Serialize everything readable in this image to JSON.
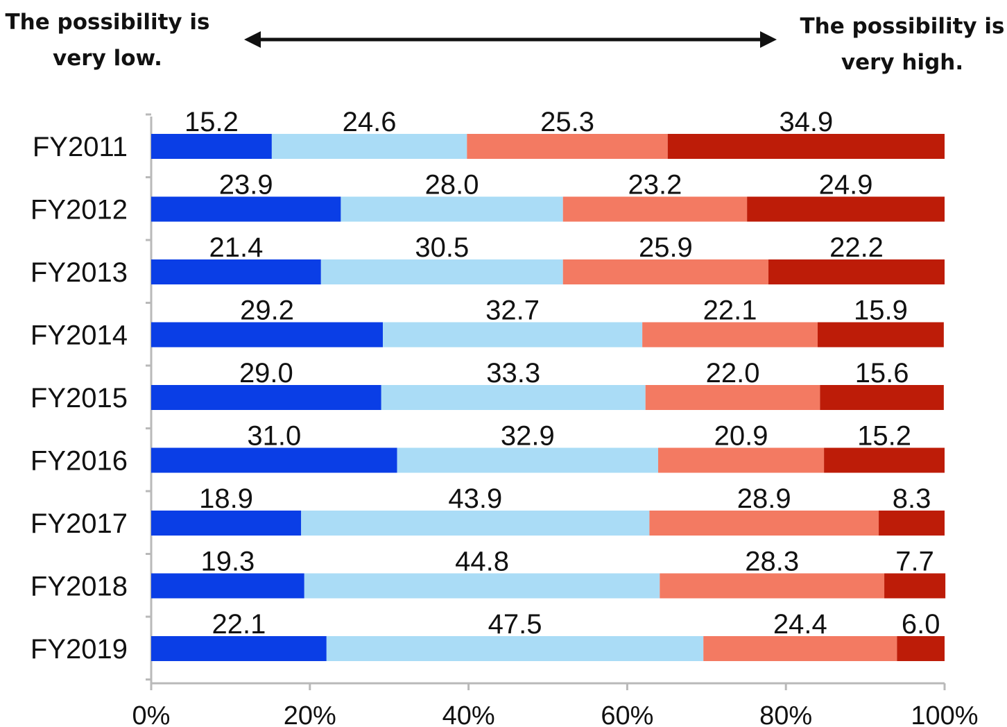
{
  "annotations": {
    "left": [
      "The possibility  is",
      "very low."
    ],
    "right": [
      "The possibility  is",
      "very high."
    ]
  },
  "chart_data": {
    "type": "bar",
    "orientation": "horizontal",
    "stacked": true,
    "normalized_percent": true,
    "categories": [
      "FY2011",
      "FY2012",
      "FY2013",
      "FY2014",
      "FY2015",
      "FY2016",
      "FY2017",
      "FY2018",
      "FY2019"
    ],
    "series": [
      {
        "values": [
          15.2,
          23.9,
          21.4,
          29.2,
          29.0,
          31.0,
          18.9,
          19.3,
          22.1
        ],
        "color": "#0a3ee6"
      },
      {
        "values": [
          24.6,
          28.0,
          30.5,
          32.7,
          33.3,
          32.9,
          43.9,
          44.8,
          47.5
        ],
        "color": "#aadcf6"
      },
      {
        "values": [
          25.3,
          23.2,
          25.9,
          22.1,
          22.0,
          20.9,
          28.9,
          28.3,
          24.4
        ],
        "color": "#f37a62"
      },
      {
        "values": [
          34.9,
          24.9,
          22.2,
          15.9,
          15.6,
          15.2,
          8.3,
          7.7,
          6.0
        ],
        "color": "#bd1c08"
      }
    ],
    "data_labels": [
      [
        "15.2",
        "23.9",
        "21.4",
        "29.2",
        "29.0",
        "31.0",
        "18.9",
        "19.3",
        "22.1"
      ],
      [
        "24.6",
        "28.0",
        "30.5",
        "32.7",
        "33.3",
        "32.9",
        "43.9",
        "44.8",
        "47.5"
      ],
      [
        "25.3",
        "23.2",
        "25.9",
        "22.1",
        "22.0",
        "20.9",
        "28.9",
        "28.3",
        "24.4"
      ],
      [
        "34.9",
        "24.9",
        "22.2",
        "15.9",
        "15.6",
        "15.2",
        "8.3",
        "7.7",
        "6.0"
      ]
    ],
    "xaxis": {
      "ticks": [
        "0%",
        "20%",
        "40%",
        "60%",
        "80%",
        "100%"
      ],
      "range": [
        0,
        100
      ]
    },
    "legend": "none",
    "grid": false
  }
}
